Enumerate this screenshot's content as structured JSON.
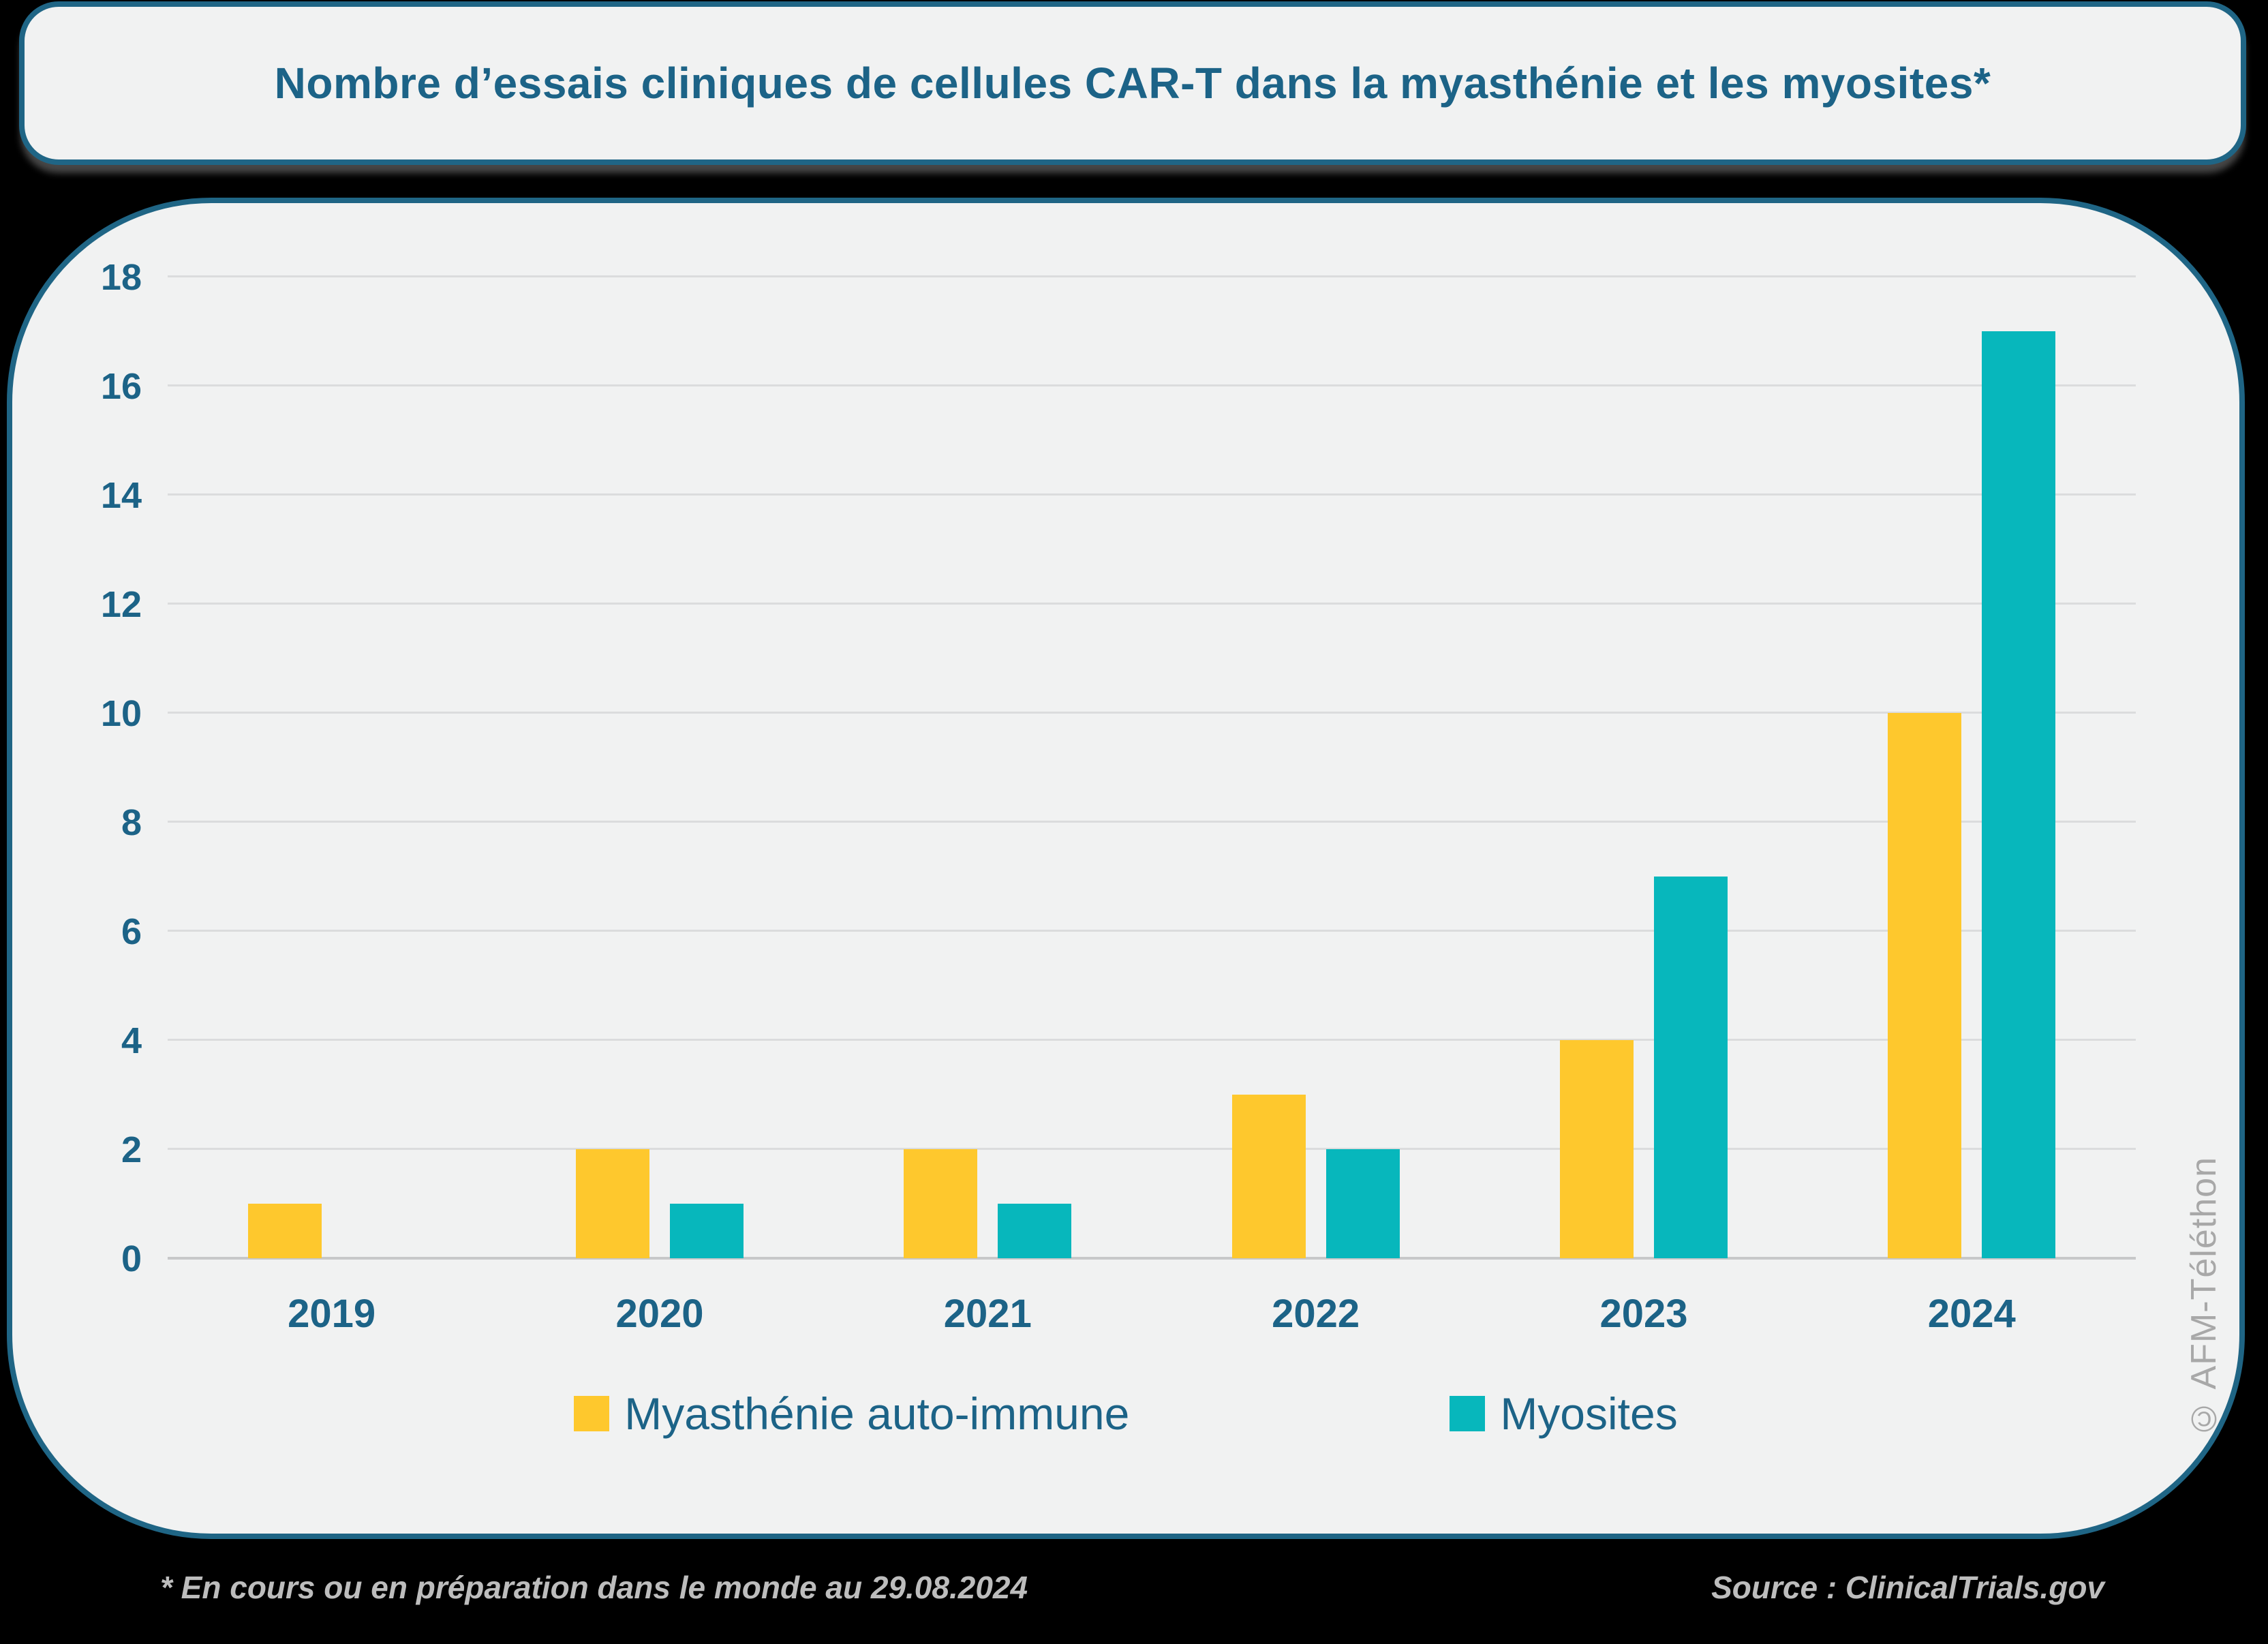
{
  "title": "Nombre d’essais cliniques de cellules CAR-T dans la myasthénie et les myosites*",
  "chart_data": {
    "type": "bar",
    "categories": [
      "2019",
      "2020",
      "2021",
      "2022",
      "2023",
      "2024"
    ],
    "series": [
      {
        "name": "Myasthénie auto-immune",
        "color": "#FEC82D",
        "values": [
          1,
          2,
          2,
          3,
          4,
          10
        ]
      },
      {
        "name": "Myosites",
        "color": "#07B7BC",
        "values": [
          0,
          1,
          1,
          2,
          7,
          17
        ]
      }
    ],
    "xlabel": "",
    "ylabel": "",
    "ylim": [
      0,
      18
    ],
    "ytick_step": 2,
    "grid": true,
    "legend_position": "bottom"
  },
  "footer": {
    "note": "* En cours ou en préparation dans le monde au 29.08.2024",
    "source": "Source : ClinicalTrials.gov"
  },
  "watermark": "© AFM-Téléthon",
  "colors": {
    "page_background": "#000000",
    "panel_background": "#F1F2F2",
    "border": "#1F6585",
    "text": "#1C6387",
    "gridline": "#DBDCDD",
    "axis_line": "#C7C8C9",
    "series_myasthenie": "#FEC82D",
    "series_myosites": "#07B7BC",
    "footer_text": "#BDBDBD",
    "watermark_text": "#A8A8A8"
  }
}
